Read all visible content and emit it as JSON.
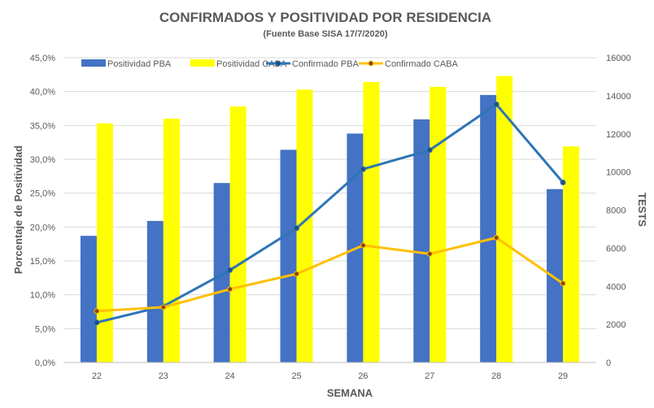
{
  "chart_data": {
    "type": "bar",
    "title": "CONFIRMADOS Y POSITIVIDAD POR RESIDENCIA",
    "subtitle": "(Fuente Base SISA 17/7/2020)",
    "xlabel": "SEMANA",
    "ylabel": "Porcentaje de Positividad",
    "y2label": "TESTS",
    "categories": [
      "22",
      "23",
      "24",
      "25",
      "26",
      "27",
      "28",
      "29"
    ],
    "ylim": [
      0,
      45
    ],
    "y_ticks": [
      "0,0%",
      "5,0%",
      "10,0%",
      "15,0%",
      "20,0%",
      "25,0%",
      "30,0%",
      "35,0%",
      "40,0%",
      "45,0%"
    ],
    "y2lim": [
      0,
      16000
    ],
    "y2_ticks": [
      "0",
      "2000",
      "4000",
      "6000",
      "8000",
      "10000",
      "12000",
      "14000",
      "16000"
    ],
    "grid": true,
    "legend_position": "top",
    "series": [
      {
        "name": "Positividad PBA",
        "kind": "bar",
        "axis": "left",
        "color": "#4472C4",
        "values": [
          18.7,
          20.9,
          26.5,
          31.4,
          33.8,
          35.9,
          39.5,
          25.6
        ]
      },
      {
        "name": "Positividad CABA",
        "kind": "bar",
        "axis": "left",
        "color": "#FFFF00",
        "values": [
          35.3,
          36.0,
          37.8,
          40.3,
          41.4,
          40.7,
          42.3,
          31.9
        ]
      },
      {
        "name": "Confirmado PBA",
        "kind": "line",
        "axis": "right",
        "color": "#2E75B6",
        "values": [
          2100,
          2950,
          4850,
          7050,
          10150,
          11150,
          13550,
          9450
        ]
      },
      {
        "name": "Confirmado CABA",
        "kind": "line",
        "axis": "right",
        "color": "#FFC000",
        "values": [
          2700,
          2900,
          3850,
          4650,
          6150,
          5700,
          6550,
          4150
        ]
      }
    ]
  }
}
